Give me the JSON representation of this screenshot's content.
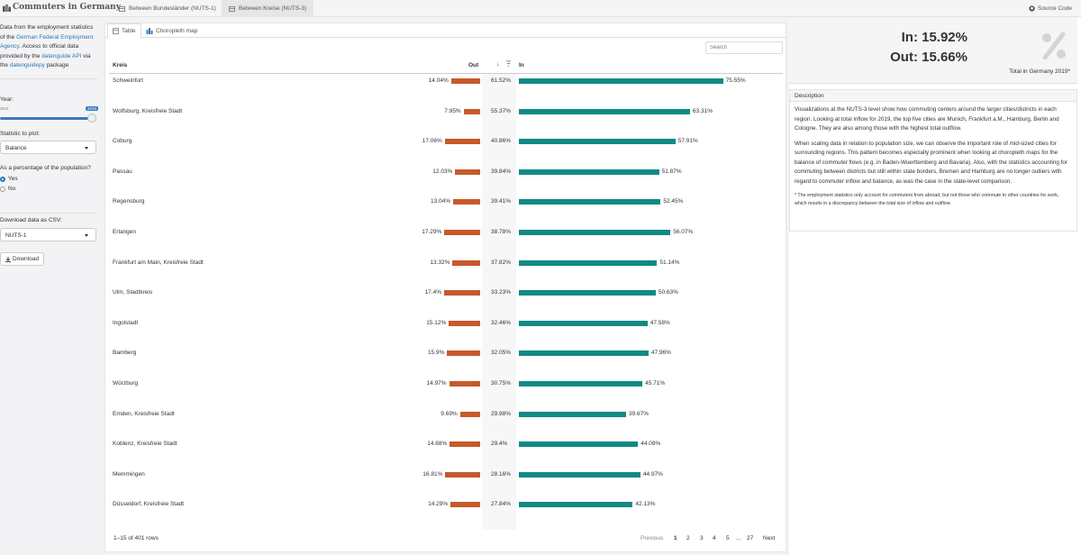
{
  "app": {
    "title": "Commuters in Germany",
    "tabs": [
      {
        "label": "Between Bundesländer (NUTS-1)"
      },
      {
        "label": "Between Kreise (NUTS-3)"
      }
    ],
    "source_code_label": "Source Code"
  },
  "sidebar": {
    "intro_1": "Data from the employment statistics of the ",
    "intro_link_1": "German Federal Employment Agency",
    "intro_2": ". Access to official data provided by the ",
    "intro_link_2": "datenguide API",
    "intro_3": " via the ",
    "intro_link_3": "datenguidepy",
    "intro_4": " package",
    "year_label": "Year:",
    "year_min": "2011",
    "year_value": "2019",
    "statistic_label": "Statistic to plot:",
    "statistic_value": "Balance",
    "percentage_label": "As a percentage of the population?",
    "radio_yes": "Yes",
    "radio_no": "No",
    "download_label": "Download data as CSV:",
    "download_select": "NUTS-1",
    "download_button": "Download"
  },
  "main": {
    "subtabs": [
      {
        "label": "Table"
      },
      {
        "label": "Choropleth map"
      }
    ],
    "search_placeholder": "Search",
    "columns": {
      "kreis": "Kreis",
      "out": "Out",
      "in": "In"
    },
    "rows": [
      {
        "kreis": "Schweinfurt",
        "out": "14.04%",
        "ratio": "61.52%",
        "in": "75.55%",
        "out_pct": 14.04,
        "in_pct": 75.55
      },
      {
        "kreis": "Wolfsburg, Kreisfreie Stadt",
        "out": "7.95%",
        "ratio": "55.37%",
        "in": "63.31%",
        "out_pct": 7.95,
        "in_pct": 63.31
      },
      {
        "kreis": "Coburg",
        "out": "17.06%",
        "ratio": "40.86%",
        "in": "57.91%",
        "out_pct": 17.06,
        "in_pct": 57.91
      },
      {
        "kreis": "Passau",
        "out": "12.03%",
        "ratio": "39.84%",
        "in": "51.87%",
        "out_pct": 12.03,
        "in_pct": 51.87
      },
      {
        "kreis": "Regensburg",
        "out": "13.04%",
        "ratio": "39.41%",
        "in": "52.45%",
        "out_pct": 13.04,
        "in_pct": 52.45
      },
      {
        "kreis": "Erlangen",
        "out": "17.29%",
        "ratio": "38.78%",
        "in": "56.07%",
        "out_pct": 17.29,
        "in_pct": 56.07
      },
      {
        "kreis": "Frankfurt am Main, Kreisfreie Stadt",
        "out": "13.32%",
        "ratio": "37.82%",
        "in": "51.14%",
        "out_pct": 13.32,
        "in_pct": 51.14
      },
      {
        "kreis": "Ulm, Stadtkreis",
        "out": "17.4%",
        "ratio": "33.23%",
        "in": "50.63%",
        "out_pct": 17.4,
        "in_pct": 50.63
      },
      {
        "kreis": "Ingolstadt",
        "out": "15.12%",
        "ratio": "32.46%",
        "in": "47.58%",
        "out_pct": 15.12,
        "in_pct": 47.58
      },
      {
        "kreis": "Bamberg",
        "out": "15.9%",
        "ratio": "32.05%",
        "in": "47.96%",
        "out_pct": 15.9,
        "in_pct": 47.96
      },
      {
        "kreis": "Würzburg",
        "out": "14.97%",
        "ratio": "30.75%",
        "in": "45.71%",
        "out_pct": 14.97,
        "in_pct": 45.71
      },
      {
        "kreis": "Emden, Kreisfreie Stadt",
        "out": "9.69%",
        "ratio": "29.98%",
        "in": "39.67%",
        "out_pct": 9.69,
        "in_pct": 39.67
      },
      {
        "kreis": "Koblenz, Kreisfreie Stadt",
        "out": "14.68%",
        "ratio": "29.4%",
        "in": "44.09%",
        "out_pct": 14.68,
        "in_pct": 44.09
      },
      {
        "kreis": "Memmingen",
        "out": "16.81%",
        "ratio": "28.16%",
        "in": "44.97%",
        "out_pct": 16.81,
        "in_pct": 44.97
      },
      {
        "kreis": "Düsseldorf, Kreisfreie Stadt",
        "out": "14.29%",
        "ratio": "27.84%",
        "in": "42.13%",
        "out_pct": 14.29,
        "in_pct": 42.13
      }
    ],
    "info": "1–15 of 401 rows",
    "pagination": {
      "previous": "Previous",
      "pages": [
        "1",
        "2",
        "3",
        "4",
        "5",
        "...",
        "27"
      ],
      "next": "Next"
    }
  },
  "right": {
    "kpi_in": "In: 15.92%",
    "kpi_out": "Out: 15.66%",
    "kpi_note": "Total in Germany 2019*",
    "description_title": "Description",
    "description_p1": "Visualizations at the NUTS-3 level show how commuting centers around the larger cities/districts in each region. Looking at total inflow for 2019, the top five cities are Munich, Frankfurt a.M., Hamburg, Berlin and Cologne. They are also among those with the highest total outflow.",
    "description_p2": "When scaling data in relation to population size, we can observe the important role of mid-sized cities for surrounding regions. This pattern becomes especially prominent when looking at choropleth maps for the balance of commuter flows (e.g. in Baden-Wuerttemberg and Bavaria). Also, with the statistics accounting for commuting between districts but still within state borders, Bremen and Hamburg are no longer outliers with regard to commuter inflow and balance, as was the case in the state-level comparison.",
    "description_foot": "* The employment statistics only account for commuters from abroad, but not those who commute to other countries for work, which results in a discrepancy between the total size of inflow and outflow."
  },
  "colors": {
    "out_bar": "#c65a2a",
    "in_bar": "#108a85",
    "link": "#2a78b5",
    "slider": "#3a78c0"
  },
  "icons": [
    "app-logo-icon",
    "table-tab-icon",
    "source-code-icon",
    "download-icon",
    "percent-icon",
    "sort-down-icon",
    "sort-bars-icon"
  ]
}
